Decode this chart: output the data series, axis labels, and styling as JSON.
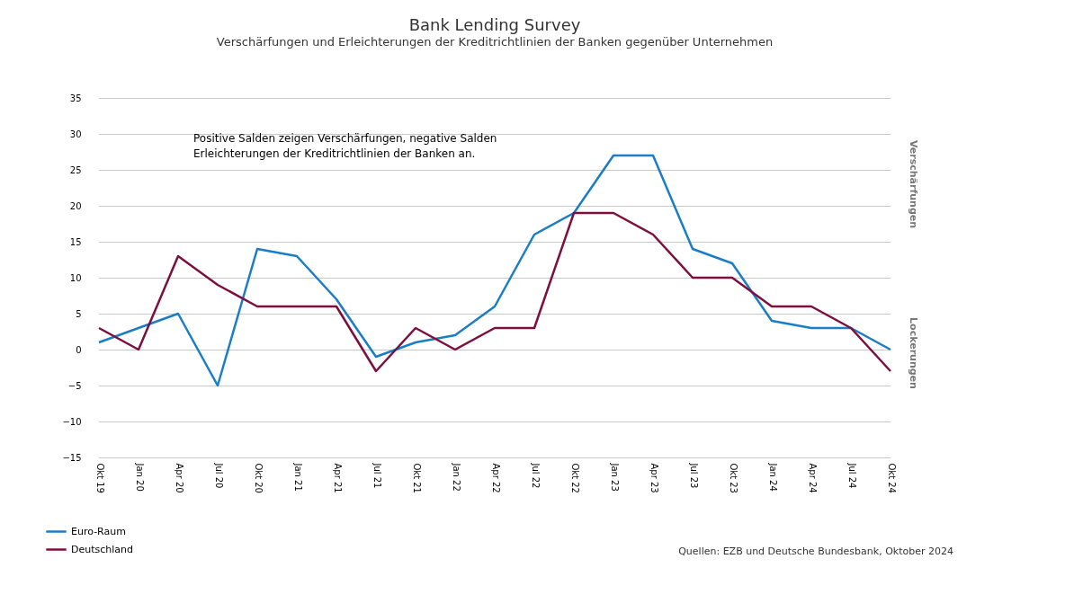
{
  "chart_data": {
    "type": "line",
    "title": "Bank Lending Survey",
    "subtitle": "Verschärfungen und Erleichterungen der Kreditrichtlinien der Banken gegenüber Unternehmen",
    "categories": [
      "Okt 19",
      "Jan 20",
      "Apr 20",
      "Jul 20",
      "Okt 20",
      "Jan 21",
      "Apr 21",
      "Jul 21",
      "Okt 21",
      "Jan 22",
      "Apr 22",
      "Jul 22",
      "Okt 22",
      "Jan 23",
      "Apr 23",
      "Jul 23",
      "Okt 23",
      "Jan 24",
      "Apr 24",
      "Jul 24",
      "Okt 24"
    ],
    "series": [
      {
        "name": "Euro-Raum",
        "color": "#1a7dc6",
        "values": [
          1,
          3,
          5,
          -5,
          14,
          13,
          7,
          -1,
          1,
          2,
          6,
          16,
          19,
          27,
          27,
          14,
          12,
          4,
          3,
          3,
          0
        ]
      },
      {
        "name": "Deutschland",
        "color": "#7d0f3f",
        "values": [
          3,
          0,
          13,
          9,
          6,
          6,
          6,
          -3,
          3,
          0,
          3,
          3,
          19,
          19,
          16,
          10,
          10,
          6,
          6,
          3,
          -3
        ]
      }
    ],
    "ylim": [
      -15,
      35
    ],
    "yticks": [
      -15,
      -10,
      -5,
      0,
      5,
      10,
      15,
      20,
      25,
      30,
      35
    ],
    "grid": "y",
    "legend": "bottom left",
    "marker": "none",
    "line_style": "solid",
    "annotations": [
      "Positive Salden zeigen Verschärfungen, negative Salden Erleichterungen der Kreditrichtlinien der Banken an.",
      "Verschärfungen",
      "Lockerungen",
      "Quellen: EZB und Deutsche Bundesbank, Oktober 2024"
    ]
  }
}
